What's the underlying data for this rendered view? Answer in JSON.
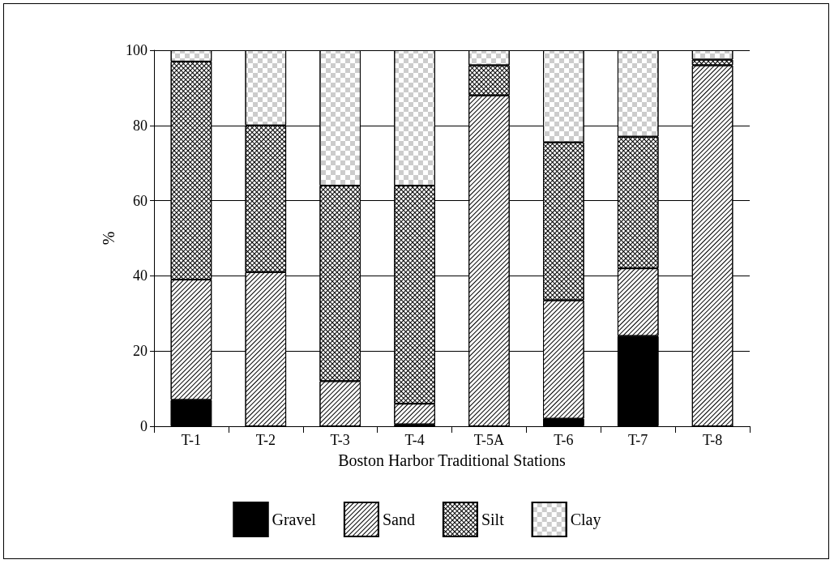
{
  "chart_data": {
    "type": "bar",
    "stacked": true,
    "xlabel": "Boston Harbor Traditional Stations",
    "ylabel": "%",
    "categories": [
      "T-1",
      "T-2",
      "T-3",
      "T-4",
      "T-5A",
      "T-6",
      "T-7",
      "T-8"
    ],
    "series": [
      {
        "name": "Gravel",
        "color": "#000000",
        "values": [
          7,
          0,
          0,
          0.5,
          0,
          2,
          24,
          0
        ]
      },
      {
        "name": "Sand",
        "color": "#ffffff",
        "values": [
          32,
          41,
          12,
          5.5,
          88,
          31.5,
          18,
          96
        ]
      },
      {
        "name": "Silt",
        "color": "#ffffff",
        "values": [
          58,
          39,
          52,
          58,
          8,
          42,
          35,
          1.5
        ]
      },
      {
        "name": "Clay",
        "color": "#ffffff",
        "values": [
          3,
          20,
          36,
          36,
          4,
          24.5,
          23,
          2.5
        ]
      }
    ],
    "ylim": [
      0,
      100
    ],
    "yticks": [
      0,
      20,
      40,
      60,
      80,
      100
    ],
    "grid": "y",
    "legend": "bottom"
  }
}
